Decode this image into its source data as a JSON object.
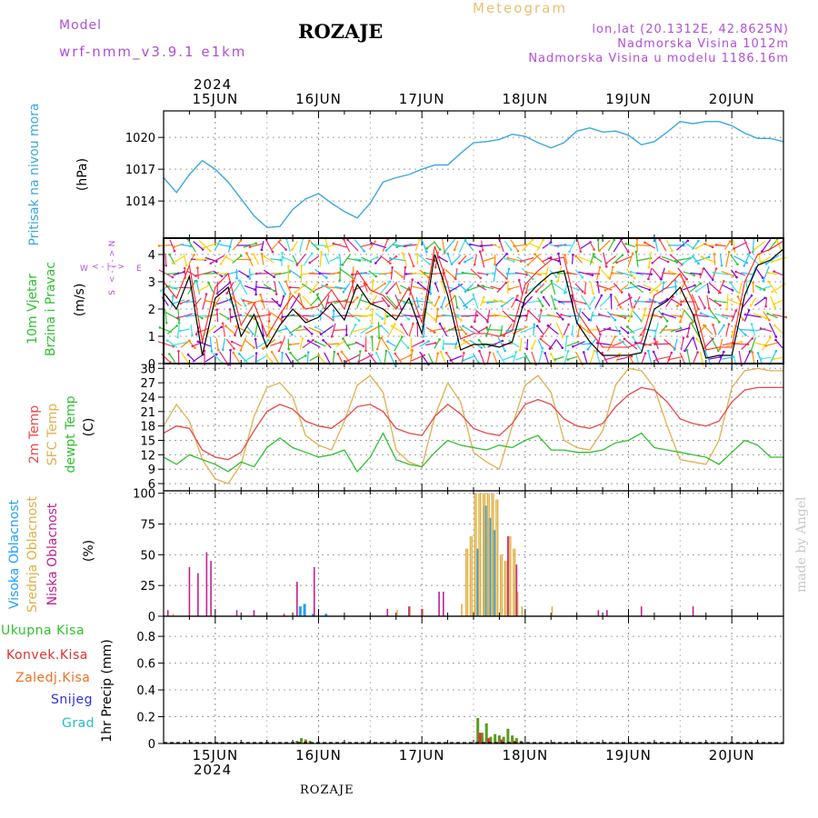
{
  "header": {
    "model_label": "Model",
    "model_name": "wrf-nmm_v3.9.1 e1km",
    "station": "ROZAJE",
    "meteogram": "Meteogram",
    "lonlat": "lon,lat (20.1312E, 42.8625N)",
    "elevation": "Nadmorska Visina 1012m",
    "model_elevation": "Nadmorska Visina u modelu 1186.16m",
    "year": "2024",
    "bottom_station": "ROZAJE",
    "credit": "made by Angel"
  },
  "colors": {
    "pressure": "#3aa8e0",
    "temp2m": "#e84848",
    "sfc": "#e0b050",
    "dewpt": "#30c030",
    "high_cloud": "#20a0ff",
    "mid_cloud": "#e0b040",
    "low_cloud": "#c02090",
    "wind_speed": "#000000",
    "gust": "#ff2020",
    "purple_label": "#b04fd6",
    "total_precip": "#30c030",
    "conv_precip": "#e03030",
    "frozen_precip": "#f07020",
    "snow": "#3030e0",
    "hail": "#20c0c0"
  },
  "chart_data": [
    {
      "type": "line",
      "id": "pressure",
      "ylabel": "Pritisak na nivou mora",
      "unit": "(hPa)",
      "yticks": [
        1014,
        1017,
        1020
      ],
      "ylim": [
        1010.5,
        1022.5
      ],
      "series": [
        {
          "x": [
            0,
            3,
            6,
            9,
            12,
            15,
            18,
            21,
            24,
            27,
            30,
            33,
            36,
            39,
            42,
            45,
            48,
            51,
            54,
            57,
            60,
            63,
            66,
            69,
            72,
            75,
            78,
            81,
            84,
            87,
            90,
            93,
            96,
            99,
            102,
            105,
            108,
            111,
            114,
            117,
            120,
            123,
            126,
            129,
            132,
            135,
            138,
            141,
            144
          ],
          "values": [
            1016.2,
            1014.8,
            1016.5,
            1017.8,
            1017.0,
            1015.8,
            1014.2,
            1012.6,
            1011.5,
            1011.6,
            1013.2,
            1014.2,
            1014.7,
            1013.8,
            1013.0,
            1012.4,
            1013.8,
            1015.8,
            1016.2,
            1016.5,
            1017.0,
            1017.4,
            1017.4,
            1018.5,
            1019.5,
            1019.6,
            1019.8,
            1020.3,
            1020.1,
            1019.5,
            1019.0,
            1019.5,
            1020.6,
            1020.9,
            1020.5,
            1020.6,
            1020.2,
            1019.3,
            1019.6,
            1020.5,
            1021.5,
            1021.3,
            1021.5,
            1021.5,
            1021.1,
            1020.4,
            1019.9,
            1019.9,
            1019.6
          ]
        }
      ]
    },
    {
      "type": "line",
      "id": "wind",
      "ylabel": "10m Vjetar Brzina i Pravac",
      "unit": "(m/s)",
      "compass": [
        "W",
        "E",
        "N",
        "S"
      ],
      "yticks": [
        0,
        1,
        2,
        3,
        4
      ],
      "ylim": [
        0,
        4.6
      ],
      "series": [
        {
          "name": "speed",
          "x": [
            0,
            3,
            6,
            9,
            12,
            15,
            18,
            21,
            24,
            27,
            30,
            33,
            36,
            39,
            42,
            45,
            48,
            51,
            54,
            57,
            60,
            63,
            66,
            69,
            72,
            75,
            78,
            81,
            84,
            87,
            90,
            93,
            96,
            99,
            102,
            105,
            108,
            111,
            114,
            117,
            120,
            123,
            126,
            129,
            132,
            135,
            138,
            141,
            144
          ],
          "values": [
            2.6,
            2.0,
            3.2,
            0.3,
            2.4,
            2.8,
            1.0,
            1.8,
            0.6,
            1.4,
            2.0,
            1.5,
            1.7,
            2.2,
            1.6,
            2.9,
            2.2,
            2.0,
            1.6,
            2.4,
            1.1,
            4.0,
            2.5,
            0.5,
            0.7,
            0.7,
            0.6,
            0.8,
            2.4,
            2.9,
            3.3,
            3.4,
            1.5,
            0.8,
            0.3,
            0.3,
            0.3,
            0.4,
            2.0,
            2.3,
            2.8,
            1.8,
            0.2,
            0.3,
            0.3,
            2.5,
            3.6,
            3.8,
            4.2
          ]
        },
        {
          "name": "gust",
          "x": [
            0,
            3,
            6,
            9,
            12,
            15,
            18,
            21,
            24,
            27,
            30,
            33,
            36,
            39,
            42,
            45,
            48,
            51,
            54,
            57,
            60,
            63,
            66,
            69,
            72,
            75,
            78,
            81,
            84,
            87,
            90,
            93,
            96,
            99,
            102,
            105,
            108,
            111,
            114,
            117,
            120,
            123,
            126,
            129,
            132,
            135,
            138,
            141,
            144
          ],
          "values": [
            3.0,
            2.4,
            3.6,
            0.8,
            2.8,
            3.3,
            1.4,
            2.2,
            1.0,
            1.8,
            2.5,
            2.0,
            2.1,
            2.7,
            2.0,
            3.4,
            2.7,
            2.5,
            2.0,
            2.8,
            1.5,
            4.3,
            2.9,
            0.9,
            1.1,
            1.1,
            1.0,
            1.2,
            2.9,
            3.4,
            3.8,
            3.9,
            1.9,
            1.2,
            0.6,
            0.6,
            0.6,
            0.8,
            2.5,
            2.8,
            3.3,
            2.3,
            0.5,
            0.6,
            0.6,
            3.0,
            4.0,
            4.2,
            4.5
          ]
        }
      ]
    },
    {
      "type": "line",
      "id": "temperature",
      "ylabel": "2m Temp / SFC Temp / dewpt Temp",
      "unit": "(C)",
      "yticks": [
        6,
        9,
        12,
        15,
        18,
        21,
        24,
        27,
        30
      ],
      "ylim": [
        4.5,
        31
      ],
      "series": [
        {
          "name": "2m Temp",
          "x": [
            0,
            3,
            6,
            9,
            12,
            15,
            18,
            21,
            24,
            27,
            30,
            33,
            36,
            39,
            42,
            45,
            48,
            51,
            54,
            57,
            60,
            63,
            66,
            69,
            72,
            75,
            78,
            81,
            84,
            87,
            90,
            93,
            96,
            99,
            102,
            105,
            108,
            111,
            114,
            117,
            120,
            123,
            126,
            129,
            132,
            135,
            138,
            141,
            144
          ],
          "values": [
            16.5,
            18.0,
            17.5,
            13.0,
            11.5,
            11.0,
            12.5,
            17.0,
            21.0,
            22.5,
            21.5,
            19.0,
            18.0,
            17.5,
            19.5,
            22.0,
            22.5,
            21.0,
            17.5,
            16.5,
            16.0,
            20.0,
            22.5,
            20.5,
            17.5,
            16.5,
            16.0,
            18.5,
            22.5,
            23.5,
            22.5,
            19.5,
            18.0,
            17.5,
            18.5,
            22.0,
            24.5,
            26.0,
            25.5,
            23.0,
            19.5,
            18.5,
            18.0,
            19.0,
            23.0,
            25.5,
            26.0,
            26.0,
            26.0
          ]
        },
        {
          "name": "SFC Temp",
          "x": [
            0,
            3,
            6,
            9,
            12,
            15,
            18,
            21,
            24,
            27,
            30,
            33,
            36,
            39,
            42,
            45,
            48,
            51,
            54,
            57,
            60,
            63,
            66,
            69,
            72,
            75,
            78,
            81,
            84,
            87,
            90,
            93,
            96,
            99,
            102,
            105,
            108,
            111,
            114,
            117,
            120,
            123,
            126,
            129,
            132,
            135,
            138,
            141,
            144
          ],
          "values": [
            18.0,
            22.5,
            19.0,
            11.0,
            7.0,
            6.0,
            10.0,
            20.0,
            26.0,
            27.0,
            24.0,
            16.0,
            14.0,
            13.0,
            19.0,
            26.5,
            28.5,
            25.0,
            13.0,
            10.5,
            9.5,
            20.0,
            27.0,
            23.0,
            12.5,
            10.5,
            9.0,
            18.0,
            26.5,
            28.5,
            25.0,
            15.0,
            13.5,
            13.0,
            17.0,
            26.5,
            30.0,
            29.5,
            26.0,
            18.0,
            11.0,
            10.5,
            10.0,
            15.0,
            26.0,
            29.5,
            30.0,
            29.5,
            29.5
          ]
        },
        {
          "name": "dewpt Temp",
          "x": [
            0,
            3,
            6,
            9,
            12,
            15,
            18,
            21,
            24,
            27,
            30,
            33,
            36,
            39,
            42,
            45,
            48,
            51,
            54,
            57,
            60,
            63,
            66,
            69,
            72,
            75,
            78,
            81,
            84,
            87,
            90,
            93,
            96,
            99,
            102,
            105,
            108,
            111,
            114,
            117,
            120,
            123,
            126,
            129,
            132,
            135,
            138,
            141,
            144
          ],
          "values": [
            11.5,
            10.0,
            12.0,
            11.0,
            10.0,
            8.5,
            10.5,
            9.5,
            13.5,
            15.5,
            13.5,
            12.5,
            11.5,
            12.0,
            13.0,
            8.5,
            11.5,
            16.5,
            11.0,
            10.0,
            9.5,
            12.5,
            15.0,
            14.0,
            13.5,
            13.0,
            14.0,
            13.5,
            15.0,
            16.0,
            13.0,
            13.0,
            12.5,
            12.5,
            13.0,
            14.5,
            15.0,
            16.5,
            13.5,
            13.0,
            12.5,
            12.0,
            11.5,
            10.0,
            12.5,
            15.0,
            14.0,
            11.5,
            11.5
          ]
        }
      ]
    },
    {
      "type": "bar",
      "id": "clouds",
      "ylabel": "Visoka Oblacnost / Srednja Oblacnost / Niska Oblacnost",
      "unit": "(%)",
      "yticks": [
        0,
        25,
        50,
        75,
        100
      ],
      "ylim": [
        0,
        102
      ],
      "series": [
        {
          "name": "Visoka Oblacnost",
          "x": [
            32,
            33,
            35,
            38,
            73.2,
            75,
            76,
            77
          ],
          "values": [
            8,
            10,
            2,
            2,
            55,
            90,
            80,
            70
          ]
        },
        {
          "name": "Srednja Oblacnost",
          "x": [
            2,
            54,
            57,
            60,
            69,
            70,
            71,
            72,
            73,
            74,
            75,
            76,
            77,
            78,
            79,
            80,
            81,
            82,
            83,
            90
          ],
          "values": [
            2,
            5,
            8,
            6,
            10,
            55,
            65,
            100,
            100,
            100,
            100,
            100,
            95,
            50,
            45,
            65,
            55,
            20,
            8,
            8
          ]
        },
        {
          "name": "Niska Oblacnost",
          "x": [
            1,
            6,
            8,
            10,
            11,
            17,
            21,
            28,
            31,
            35,
            52,
            57,
            60,
            64,
            65,
            80,
            82,
            101,
            103,
            111,
            123
          ],
          "values": [
            5,
            40,
            35,
            52,
            45,
            5,
            5,
            2,
            28,
            40,
            6,
            8,
            6,
            20,
            20,
            65,
            42,
            5,
            5,
            8,
            8
          ]
        }
      ]
    },
    {
      "type": "bar",
      "id": "precip",
      "ylabel": "1hr Precip",
      "unit": "(mm)",
      "legend": [
        "Ukupna Kisa",
        "Konvek.Kisa",
        "Zaledj.Kisa",
        "Snijeg",
        "Grad"
      ],
      "yticks": [
        0,
        0.2,
        0.4,
        0.6,
        0.8
      ],
      "ylim": [
        0,
        0.95
      ],
      "series": [
        {
          "name": "Ukupna Kisa",
          "x": [
            30,
            31,
            32,
            33,
            34,
            73,
            74,
            75,
            76,
            77,
            78,
            79,
            80,
            81,
            82,
            83
          ],
          "values": [
            0.01,
            0.02,
            0.04,
            0.03,
            0.02,
            0.19,
            0.08,
            0.15,
            0.05,
            0.07,
            0.06,
            0.05,
            0.11,
            0.06,
            0.04,
            0.02
          ]
        },
        {
          "name": "Konvek.Kisa",
          "x": [
            29,
            31,
            33,
            55,
            73.5,
            75.5,
            78.5,
            81.5
          ],
          "values": [
            0.005,
            0.01,
            0.02,
            0.005,
            0.08,
            0.04,
            0.03,
            0.02
          ]
        }
      ]
    }
  ],
  "x_axis": {
    "dates": [
      "15JUN",
      "16JUN",
      "17JUN",
      "18JUN",
      "19JUN",
      "20JUN"
    ],
    "range_hours": [
      0,
      144
    ],
    "first_midnight_hour": 12
  },
  "wind_strip": {
    "colors": [
      "#ff8800",
      "#30c030",
      "#20c0ff",
      "#8000e0",
      "#e02080",
      "#ffd000",
      "#40e0e0",
      "#ff4040"
    ]
  }
}
